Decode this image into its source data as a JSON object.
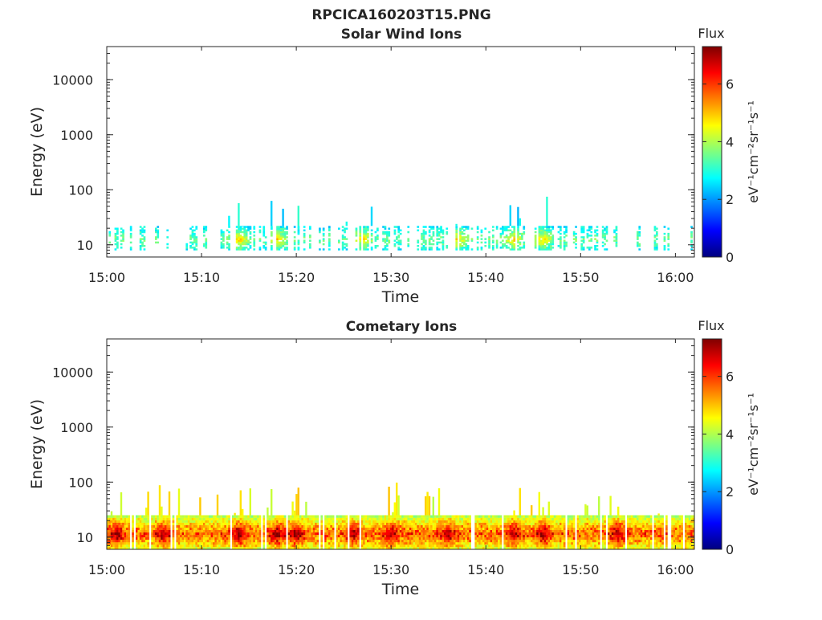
{
  "figure": {
    "title": "RPCICA160203T15.PNG"
  },
  "colormap": {
    "name": "jet",
    "stops": [
      "#00007f",
      "#0000ff",
      "#007fff",
      "#00ffff",
      "#7fff7f",
      "#ffff00",
      "#ff7f00",
      "#ff0000",
      "#7f0000"
    ]
  },
  "chart_data": [
    {
      "type": "heatmap",
      "title": "Solar Wind Ions",
      "xlabel": "Time",
      "ylabel": "Energy (eV)",
      "x_range": [
        "15:00",
        "16:02"
      ],
      "x_ticks": [
        "15:00",
        "15:10",
        "15:20",
        "15:30",
        "15:40",
        "15:50",
        "16:00"
      ],
      "y_scale": "log",
      "y_range": [
        6,
        40000
      ],
      "y_ticks": [
        "10",
        "100",
        "1000",
        "10000"
      ],
      "colorbar": {
        "title": "Flux",
        "label": "eV⁻¹cm⁻²sr⁻¹s⁻¹",
        "range": [
          0,
          7.3
        ],
        "ticks": [
          "0",
          "2",
          "4",
          "6"
        ]
      },
      "band_energy_range": [
        8,
        22
      ],
      "typical_flux": 3.2,
      "peak_flux_times": [
        "15:14",
        "15:18",
        "15:27",
        "15:37",
        "15:43",
        "15:46"
      ],
      "peak_flux": 4.6
    },
    {
      "type": "heatmap",
      "title": "Cometary Ions",
      "xlabel": "Time",
      "ylabel": "Energy (eV)",
      "x_range": [
        "15:00",
        "16:02"
      ],
      "x_ticks": [
        "15:00",
        "15:10",
        "15:20",
        "15:30",
        "15:40",
        "15:50",
        "16:00"
      ],
      "y_scale": "log",
      "y_range": [
        6,
        40000
      ],
      "y_ticks": [
        "10",
        "100",
        "1000",
        "10000"
      ],
      "colorbar": {
        "title": "Flux",
        "label": "eV⁻¹cm⁻²sr⁻¹s⁻¹",
        "range": [
          0,
          7.3
        ],
        "ticks": [
          "0",
          "2",
          "4",
          "6"
        ]
      },
      "band_energy_range": [
        6,
        25
      ],
      "typical_flux": 5.0,
      "peak_flux_times": [
        "15:01",
        "15:06",
        "15:14",
        "15:18",
        "15:20",
        "15:26",
        "15:30",
        "15:36",
        "15:43",
        "15:46",
        "15:54"
      ],
      "peak_flux": 6.5
    }
  ]
}
